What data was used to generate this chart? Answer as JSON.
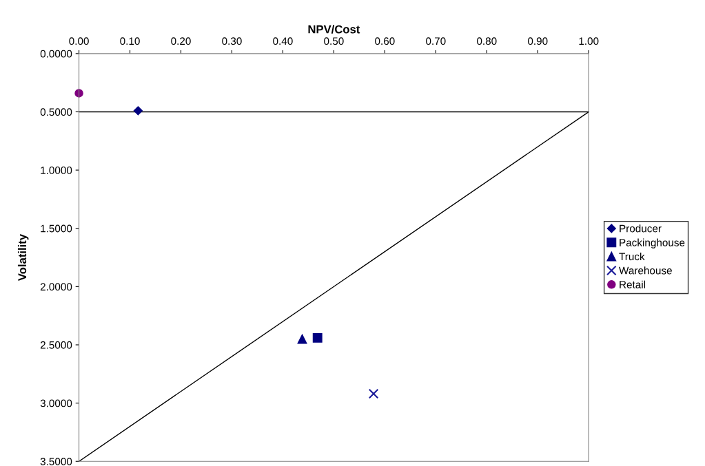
{
  "chart_data": {
    "type": "scatter",
    "xlabel": "NPV/Cost",
    "ylabel": "Volatility",
    "xlim": [
      0,
      1
    ],
    "ylim": [
      3.5,
      0
    ],
    "xticks": [
      {
        "value": 0,
        "label": "0.00"
      },
      {
        "value": 0.1,
        "label": "0.10"
      },
      {
        "value": 0.2,
        "label": "0.20"
      },
      {
        "value": 0.3,
        "label": "0.30"
      },
      {
        "value": 0.4,
        "label": "0.40"
      },
      {
        "value": 0.5,
        "label": "0.50"
      },
      {
        "value": 0.6,
        "label": "0.60"
      },
      {
        "value": 0.7,
        "label": "0.70"
      },
      {
        "value": 0.8,
        "label": "0.80"
      },
      {
        "value": 0.9,
        "label": "0.90"
      },
      {
        "value": 1,
        "label": "1.00"
      }
    ],
    "yticks": [
      {
        "value": 0,
        "label": "0.0000"
      },
      {
        "value": 0.5,
        "label": "0.5000"
      },
      {
        "value": 1,
        "label": "1.0000"
      },
      {
        "value": 1.5,
        "label": "1.5000"
      },
      {
        "value": 2,
        "label": "2.0000"
      },
      {
        "value": 2.5,
        "label": "2.5000"
      },
      {
        "value": 3,
        "label": "3.0000"
      },
      {
        "value": 3.5,
        "label": "3.5000"
      }
    ],
    "grid": false,
    "legend": "right",
    "series": [
      {
        "type": "line",
        "color": "#000000",
        "x": [
          0,
          1
        ],
        "values": [
          0.5,
          0.5
        ],
        "marker": "none"
      },
      {
        "type": "line",
        "color": "#000000",
        "x": [
          0,
          1
        ],
        "values": [
          3.5,
          0.5
        ],
        "marker": "none"
      },
      {
        "name": "Producer",
        "color": "#000080",
        "x": [
          0.116
        ],
        "values": [
          0.49
        ],
        "marker": "diamond"
      },
      {
        "name": "Packinghouse",
        "color": "#000080",
        "x": [
          0.468
        ],
        "values": [
          2.44
        ],
        "marker": "square"
      },
      {
        "name": "Truck",
        "color": "#000080",
        "x": [
          0.438
        ],
        "values": [
          2.45
        ],
        "marker": "triangle"
      },
      {
        "name": "Warehouse",
        "color": "#1a1a99",
        "x": [
          0.578
        ],
        "values": [
          2.92
        ],
        "marker": "cross"
      },
      {
        "name": "Retail",
        "color": "#800080",
        "x": [
          0
        ],
        "values": [
          0.34
        ],
        "marker": "circle"
      }
    ]
  }
}
